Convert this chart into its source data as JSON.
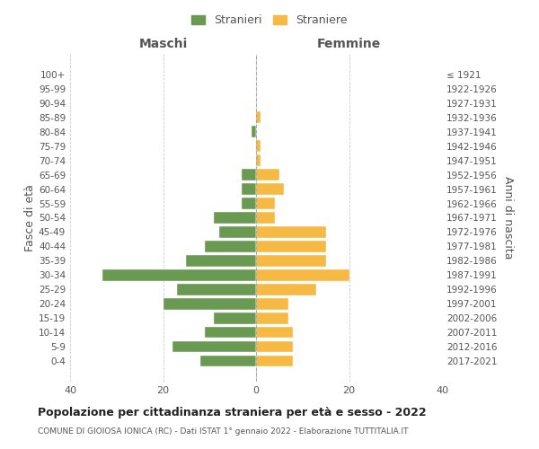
{
  "age_groups": [
    "0-4",
    "5-9",
    "10-14",
    "15-19",
    "20-24",
    "25-29",
    "30-34",
    "35-39",
    "40-44",
    "45-49",
    "50-54",
    "55-59",
    "60-64",
    "65-69",
    "70-74",
    "75-79",
    "80-84",
    "85-89",
    "90-94",
    "95-99",
    "100+"
  ],
  "birth_years": [
    "2017-2021",
    "2012-2016",
    "2007-2011",
    "2002-2006",
    "1997-2001",
    "1992-1996",
    "1987-1991",
    "1982-1986",
    "1977-1981",
    "1972-1976",
    "1967-1971",
    "1962-1966",
    "1957-1961",
    "1952-1956",
    "1947-1951",
    "1942-1946",
    "1937-1941",
    "1932-1936",
    "1927-1931",
    "1922-1926",
    "≤ 1921"
  ],
  "maschi": [
    12,
    18,
    11,
    9,
    20,
    17,
    33,
    15,
    11,
    8,
    9,
    3,
    3,
    3,
    0,
    0,
    1,
    0,
    0,
    0,
    0
  ],
  "femmine": [
    8,
    8,
    8,
    7,
    7,
    13,
    20,
    15,
    15,
    15,
    4,
    4,
    6,
    5,
    1,
    1,
    0,
    1,
    0,
    0,
    0
  ],
  "maschi_color": "#6a9a52",
  "femmine_color": "#f5b944",
  "background_color": "#ffffff",
  "grid_color": "#cccccc",
  "title": "Popolazione per cittadinanza straniera per età e sesso - 2022",
  "subtitle": "COMUNE DI GIOIOSA IONICA (RC) - Dati ISTAT 1° gennaio 2022 - Elaborazione TUTTITALIA.IT",
  "legend_stranieri": "Stranieri",
  "legend_straniere": "Straniere",
  "xlabel_left": "Maschi",
  "xlabel_right": "Femmine",
  "ylabel_left": "Fasce di età",
  "ylabel_right": "Anni di nascita",
  "xlim": 40
}
